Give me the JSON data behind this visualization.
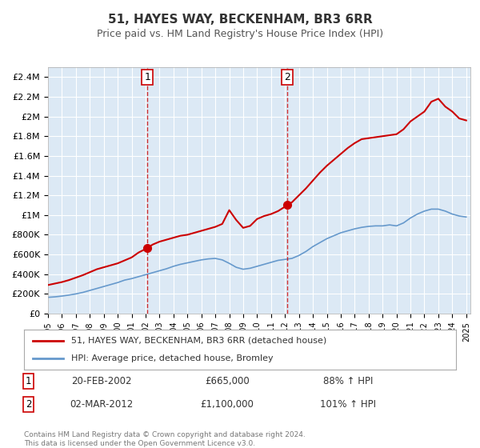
{
  "title": "51, HAYES WAY, BECKENHAM, BR3 6RR",
  "subtitle": "Price paid vs. HM Land Registry's House Price Index (HPI)",
  "background_color": "#ffffff",
  "plot_bg_color": "#dce9f5",
  "grid_color": "#ffffff",
  "ylim": [
    0,
    2500000
  ],
  "yticks": [
    0,
    200000,
    400000,
    600000,
    800000,
    1000000,
    1200000,
    1400000,
    1600000,
    1800000,
    2000000,
    2200000,
    2400000
  ],
  "ytick_labels": [
    "£0",
    "£200K",
    "£400K",
    "£600K",
    "£800K",
    "£1M",
    "£1.2M",
    "£1.4M",
    "£1.6M",
    "£1.8M",
    "£2M",
    "£2.2M",
    "£2.4M"
  ],
  "xlim_start": 1995.0,
  "xlim_end": 2025.3,
  "xticks": [
    1995,
    1996,
    1997,
    1998,
    1999,
    2000,
    2001,
    2002,
    2003,
    2004,
    2005,
    2006,
    2007,
    2008,
    2009,
    2010,
    2011,
    2012,
    2013,
    2014,
    2015,
    2016,
    2017,
    2018,
    2019,
    2020,
    2021,
    2022,
    2023,
    2024,
    2025
  ],
  "red_line_color": "#cc0000",
  "blue_line_color": "#6699cc",
  "marker_color": "#cc0000",
  "vline_color": "#cc0000",
  "sale1_x": 2002.13,
  "sale1_y": 665000,
  "sale1_label": "1",
  "sale2_x": 2012.17,
  "sale2_y": 1100000,
  "sale2_label": "2",
  "legend_red_label": "51, HAYES WAY, BECKENHAM, BR3 6RR (detached house)",
  "legend_blue_label": "HPI: Average price, detached house, Bromley",
  "table_row1": [
    "1",
    "20-FEB-2002",
    "£665,000",
    "88% ↑ HPI"
  ],
  "table_row2": [
    "2",
    "02-MAR-2012",
    "£1,100,000",
    "101% ↑ HPI"
  ],
  "footer_line1": "Contains HM Land Registry data © Crown copyright and database right 2024.",
  "footer_line2": "This data is licensed under the Open Government Licence v3.0.",
  "red_x": [
    1995.0,
    1995.5,
    1996.0,
    1996.5,
    1997.0,
    1997.5,
    1998.0,
    1998.5,
    1999.0,
    1999.5,
    2000.0,
    2000.5,
    2001.0,
    2001.5,
    2002.13,
    2002.5,
    2003.0,
    2003.5,
    2004.0,
    2004.5,
    2005.0,
    2005.5,
    2006.0,
    2006.5,
    2007.0,
    2007.5,
    2008.0,
    2008.5,
    2009.0,
    2009.5,
    2010.0,
    2010.5,
    2011.0,
    2011.5,
    2012.17,
    2012.5,
    2013.0,
    2013.5,
    2014.0,
    2014.5,
    2015.0,
    2015.5,
    2016.0,
    2016.5,
    2017.0,
    2017.5,
    2018.0,
    2018.5,
    2019.0,
    2019.5,
    2020.0,
    2020.5,
    2021.0,
    2021.5,
    2022.0,
    2022.5,
    2023.0,
    2023.5,
    2024.0,
    2024.5,
    2025.0
  ],
  "red_y": [
    290000,
    305000,
    320000,
    340000,
    365000,
    390000,
    420000,
    450000,
    470000,
    490000,
    510000,
    540000,
    570000,
    620000,
    665000,
    700000,
    730000,
    750000,
    770000,
    790000,
    800000,
    820000,
    840000,
    860000,
    880000,
    910000,
    1050000,
    950000,
    870000,
    890000,
    960000,
    990000,
    1010000,
    1040000,
    1100000,
    1130000,
    1200000,
    1270000,
    1350000,
    1430000,
    1500000,
    1560000,
    1620000,
    1680000,
    1730000,
    1770000,
    1780000,
    1790000,
    1800000,
    1810000,
    1820000,
    1870000,
    1950000,
    2000000,
    2050000,
    2150000,
    2180000,
    2100000,
    2050000,
    1980000,
    1960000
  ],
  "blue_x": [
    1995.0,
    1995.5,
    1996.0,
    1996.5,
    1997.0,
    1997.5,
    1998.0,
    1998.5,
    1999.0,
    1999.5,
    2000.0,
    2000.5,
    2001.0,
    2001.5,
    2002.0,
    2002.5,
    2003.0,
    2003.5,
    2004.0,
    2004.5,
    2005.0,
    2005.5,
    2006.0,
    2006.5,
    2007.0,
    2007.5,
    2008.0,
    2008.5,
    2009.0,
    2009.5,
    2010.0,
    2010.5,
    2011.0,
    2011.5,
    2012.0,
    2012.5,
    2013.0,
    2013.5,
    2014.0,
    2014.5,
    2015.0,
    2015.5,
    2016.0,
    2016.5,
    2017.0,
    2017.5,
    2018.0,
    2018.5,
    2019.0,
    2019.5,
    2020.0,
    2020.5,
    2021.0,
    2021.5,
    2022.0,
    2022.5,
    2023.0,
    2023.5,
    2024.0,
    2024.5,
    2025.0
  ],
  "blue_y": [
    165000,
    170000,
    178000,
    188000,
    200000,
    215000,
    235000,
    255000,
    275000,
    295000,
    315000,
    340000,
    355000,
    375000,
    395000,
    415000,
    435000,
    455000,
    480000,
    500000,
    515000,
    530000,
    545000,
    555000,
    560000,
    545000,
    510000,
    470000,
    450000,
    460000,
    480000,
    500000,
    520000,
    540000,
    550000,
    560000,
    590000,
    630000,
    680000,
    720000,
    760000,
    790000,
    820000,
    840000,
    860000,
    875000,
    885000,
    890000,
    890000,
    900000,
    890000,
    920000,
    970000,
    1010000,
    1040000,
    1060000,
    1060000,
    1040000,
    1010000,
    990000,
    980000
  ]
}
